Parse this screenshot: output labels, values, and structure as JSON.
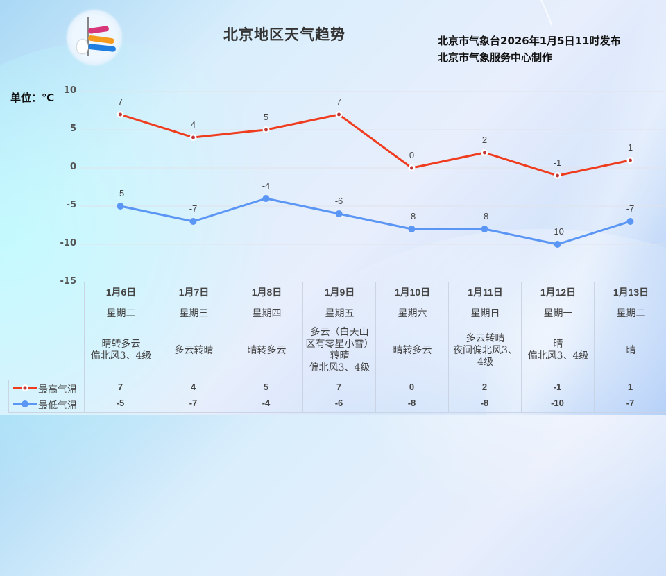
{
  "header": {
    "title": "北京地区天气趋势",
    "publisher_line1": "北京市气象台2026年1月5日11时发布",
    "publisher_line2": "北京市气象服务中心制作",
    "logo": "meteorological-service-logo"
  },
  "unit_label": "单位：℃",
  "colors": {
    "high": "#f03c1e",
    "low": "#5b96f5",
    "high_marker_fill": "#c0393b",
    "grid": "#e2e2e8"
  },
  "y_axis": {
    "ticks": [
      "10",
      "5",
      "0",
      "-5",
      "-10",
      "-15"
    ]
  },
  "days": [
    {
      "date": "1月6日",
      "weekday": "星期二",
      "weather": "晴转多云\n偏北风3、4级",
      "high": "7",
      "low": "-5"
    },
    {
      "date": "1月7日",
      "weekday": "星期三",
      "weather": "多云转晴",
      "high": "4",
      "low": "-7"
    },
    {
      "date": "1月8日",
      "weekday": "星期四",
      "weather": "晴转多云",
      "high": "5",
      "low": "-4"
    },
    {
      "date": "1月9日",
      "weekday": "星期五",
      "weather": "多云（白天山\n区有零星小雪）\n转晴\n偏北风3、4级",
      "high": "7",
      "low": "-6"
    },
    {
      "date": "1月10日",
      "weekday": "星期六",
      "weather": "晴转多云",
      "high": "0",
      "low": "-8"
    },
    {
      "date": "1月11日",
      "weekday": "星期日",
      "weather": "多云转晴\n夜间偏北风3、\n4级",
      "high": "2",
      "low": "-8"
    },
    {
      "date": "1月12日",
      "weekday": "星期一",
      "weather": "晴\n偏北风3、4级",
      "high": "-1",
      "low": "-10"
    },
    {
      "date": "1月13日",
      "weekday": "星期二",
      "weather": "晴",
      "high": "1",
      "low": "-7"
    }
  ],
  "legend": {
    "high_label": "最高气温",
    "low_label": "最低气温"
  },
  "chart_data": {
    "type": "line",
    "title": "北京地区天气趋势",
    "xlabel": "",
    "ylabel": "单位：℃",
    "categories": [
      "1月6日",
      "1月7日",
      "1月8日",
      "1月9日",
      "1月10日",
      "1月11日",
      "1月12日",
      "1月13日"
    ],
    "series": [
      {
        "name": "最高气温",
        "color": "#f03c1e",
        "values": [
          7,
          4,
          5,
          7,
          0,
          2,
          -1,
          1
        ]
      },
      {
        "name": "最低气温",
        "color": "#5b96f5",
        "values": [
          -5,
          -7,
          -4,
          -6,
          -8,
          -8,
          -10,
          -7
        ]
      }
    ],
    "ylim": [
      -15,
      10
    ],
    "yticks": [
      10,
      5,
      0,
      -5,
      -10,
      -15
    ],
    "grid": true,
    "legend_position": "bottom-left data table"
  }
}
